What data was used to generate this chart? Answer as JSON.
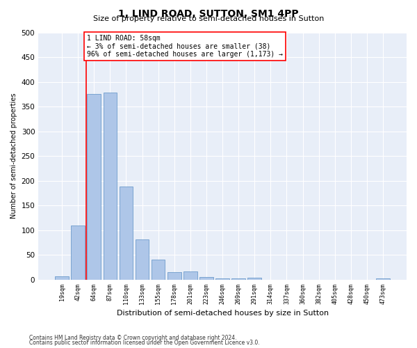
{
  "title": "1, LIND ROAD, SUTTON, SM1 4PP",
  "subtitle": "Size of property relative to semi-detached houses in Sutton",
  "xlabel": "Distribution of semi-detached houses by size in Sutton",
  "ylabel": "Number of semi-detached properties",
  "categories": [
    "19sqm",
    "42sqm",
    "64sqm",
    "87sqm",
    "110sqm",
    "133sqm",
    "155sqm",
    "178sqm",
    "201sqm",
    "223sqm",
    "246sqm",
    "269sqm",
    "291sqm",
    "314sqm",
    "337sqm",
    "360sqm",
    "382sqm",
    "405sqm",
    "428sqm",
    "450sqm",
    "473sqm"
  ],
  "values": [
    7,
    110,
    375,
    378,
    188,
    82,
    40,
    15,
    16,
    6,
    3,
    2,
    4,
    0,
    0,
    0,
    0,
    0,
    0,
    0,
    3
  ],
  "bar_color": "#aec6e8",
  "bar_edge_color": "#5b8fc4",
  "annotation_text": "1 LIND ROAD: 58sqm\n← 3% of semi-detached houses are smaller (38)\n96% of semi-detached houses are larger (1,173) →",
  "ylim": [
    0,
    500
  ],
  "yticks": [
    0,
    50,
    100,
    150,
    200,
    250,
    300,
    350,
    400,
    450,
    500
  ],
  "footnote1": "Contains HM Land Registry data © Crown copyright and database right 2024.",
  "footnote2": "Contains public sector information licensed under the Open Government Licence v3.0.",
  "bg_color": "#e8eef8"
}
